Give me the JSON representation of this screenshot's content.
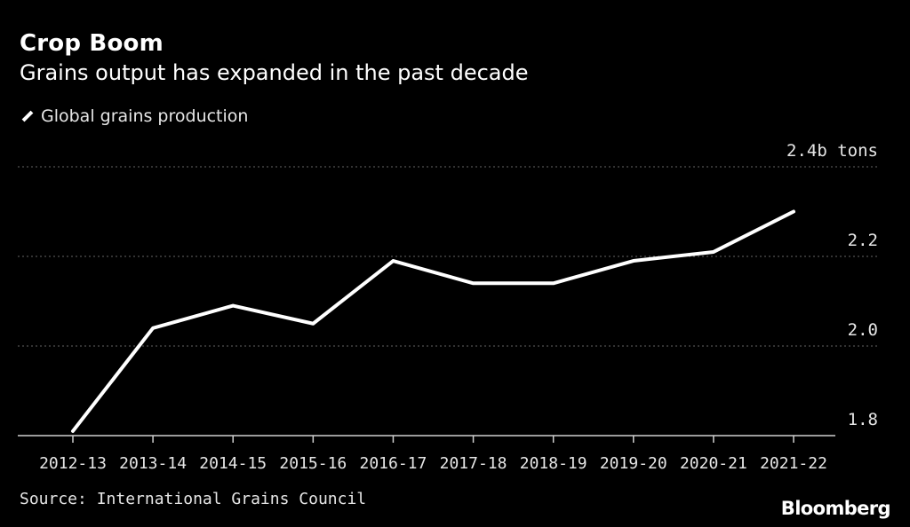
{
  "header": {
    "title": "Crop Boom",
    "subtitle": "Grains output has expanded in the past decade"
  },
  "legend": {
    "label": "Global grains production"
  },
  "footer": {
    "source": "Source: International Grains Council",
    "logo": "Bloomberg"
  },
  "colors": {
    "background": "#000000",
    "line": "#ffffff",
    "grid": "#666666"
  },
  "chart_data": {
    "type": "line",
    "title": "Crop Boom",
    "subtitle": "Grains output has expanded in the past decade",
    "categories": [
      "2012-13",
      "2013-14",
      "2014-15",
      "2015-16",
      "2016-17",
      "2017-18",
      "2018-19",
      "2019-20",
      "2020-21",
      "2021-22"
    ],
    "series": [
      {
        "name": "Global grains production",
        "values": [
          1.81,
          2.04,
          2.09,
          2.05,
          2.19,
          2.14,
          2.14,
          2.19,
          2.21,
          2.3
        ]
      }
    ],
    "ylim": [
      1.8,
      2.4
    ],
    "yticks": [
      1.8,
      2.0,
      2.2,
      2.4
    ],
    "ytick_labels": [
      "1.8",
      "2.0",
      "2.2",
      "2.4b tons"
    ],
    "grid": true,
    "legend_position": "top-left"
  }
}
